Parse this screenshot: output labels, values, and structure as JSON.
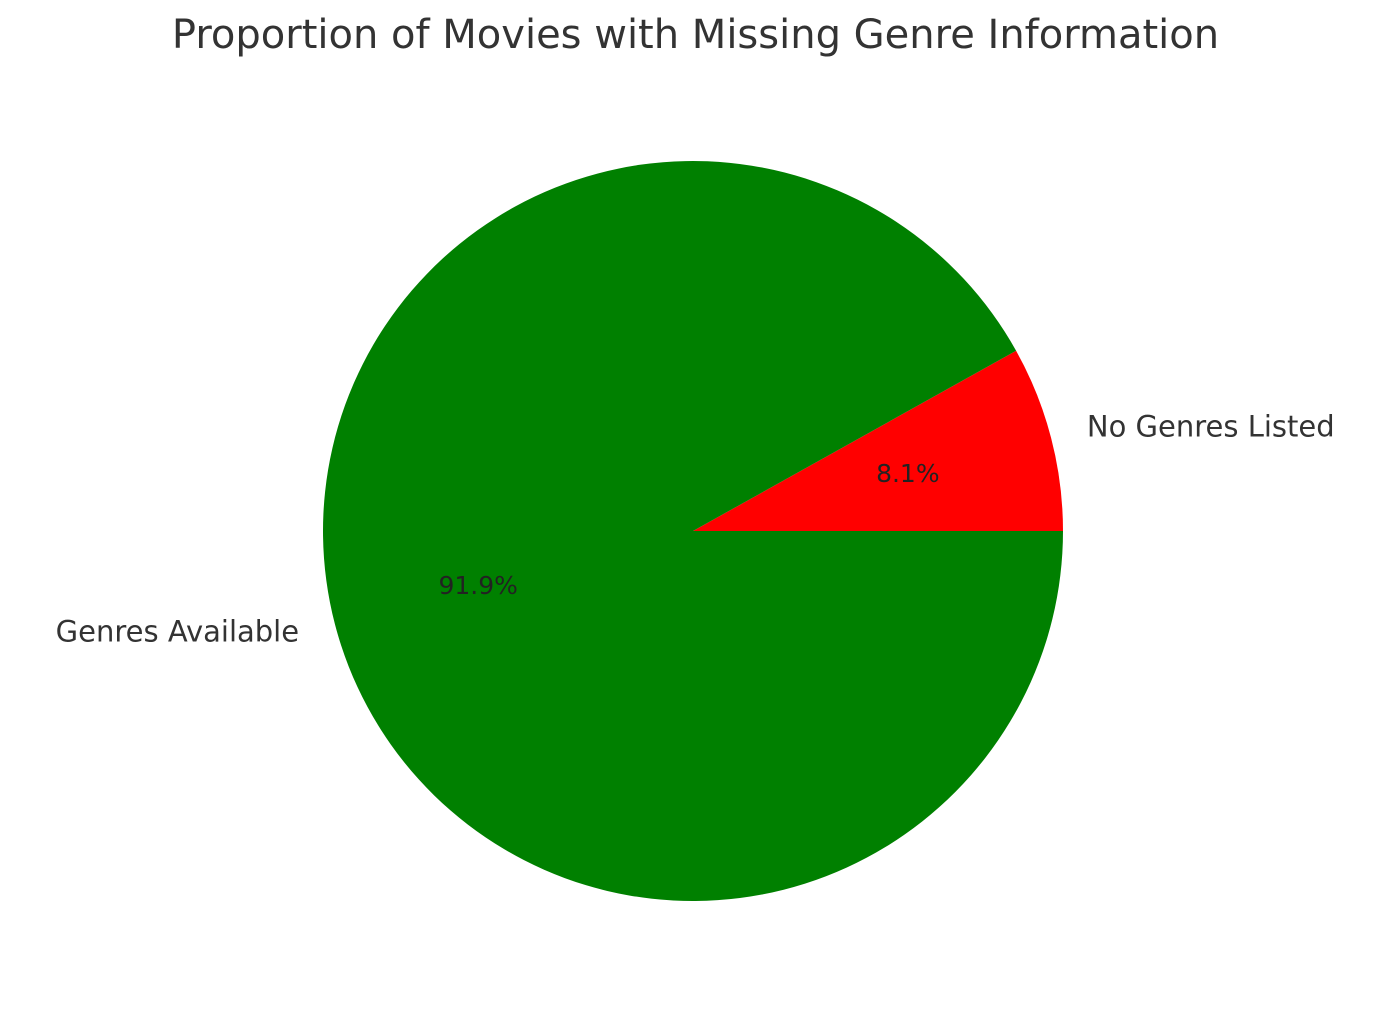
{
  "chart_data": {
    "type": "pie",
    "title": "Proportion of Movies with Missing Genre Information",
    "categories": [
      "No Genres Listed",
      "Genres Available"
    ],
    "values": [
      8.1,
      91.9
    ],
    "labels": [
      "8.1%",
      "91.9%"
    ],
    "colors": [
      "#ff0000",
      "#008000"
    ],
    "start_angle_deg": 0,
    "legend": "none"
  }
}
